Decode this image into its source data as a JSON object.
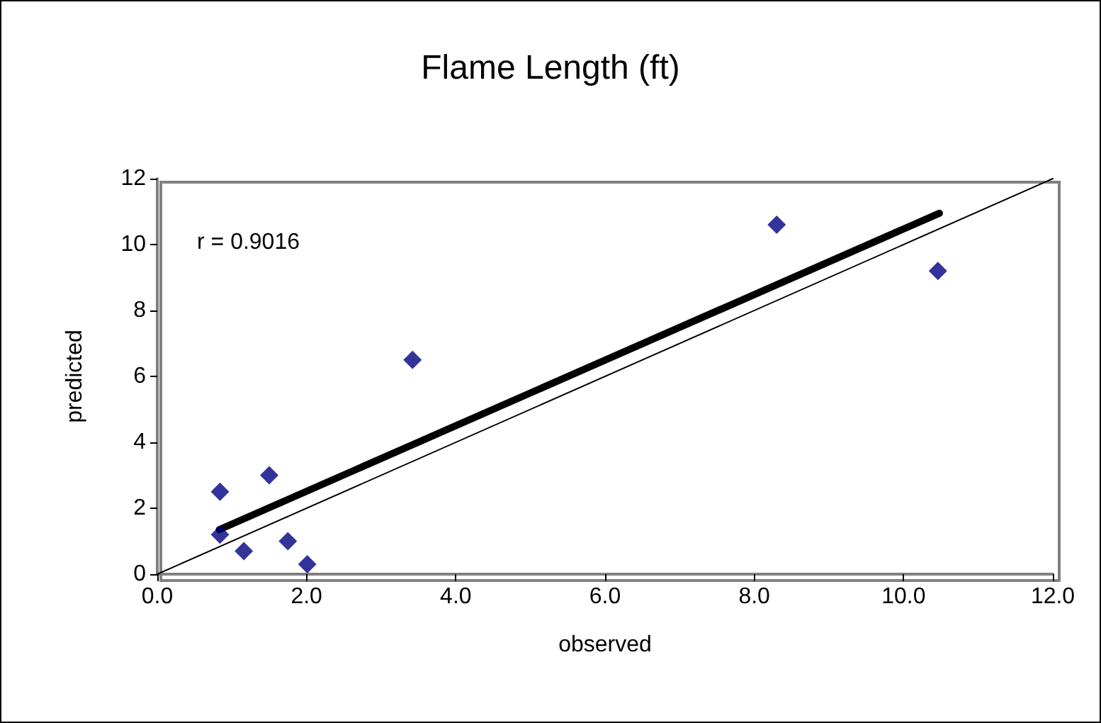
{
  "chart_data": {
    "type": "scatter",
    "title": "Flame Length (ft)",
    "xlabel": "observed",
    "ylabel": "predicted",
    "annotations": [
      "r = 0.9016"
    ],
    "series": [
      {
        "marker": "diamond",
        "color": "#000080",
        "x": [
          0.84,
          0.84,
          1.16,
          1.5,
          1.75,
          2.01,
          3.42,
          8.3,
          10.46
        ],
        "values": [
          2.5,
          1.2,
          0.7,
          3.0,
          1.0,
          0.3,
          6.5,
          10.6,
          9.2
        ]
      },
      {
        "type": "line",
        "marker": "none",
        "color": "#000000",
        "x": [
          0.83,
          10.48
        ],
        "values": [
          1.35,
          10.95
        ]
      },
      {
        "type": "line",
        "marker": "none",
        "color": "#000000",
        "x": [
          0,
          12
        ],
        "values": [
          0,
          12
        ]
      }
    ],
    "xlim": [
      0,
      12
    ],
    "xticks": [
      {
        "value": 0,
        "label": "0.0"
      },
      {
        "value": 2,
        "label": "2.0"
      },
      {
        "value": 4,
        "label": "4.0"
      },
      {
        "value": 6,
        "label": "6.0"
      },
      {
        "value": 8,
        "label": "8.0"
      },
      {
        "value": 10,
        "label": "10.0"
      },
      {
        "value": 12,
        "label": "12.0"
      }
    ],
    "ylim": [
      0,
      12
    ],
    "yticks": [
      0,
      2,
      4,
      6,
      8,
      10,
      12
    ],
    "grid": false
  }
}
